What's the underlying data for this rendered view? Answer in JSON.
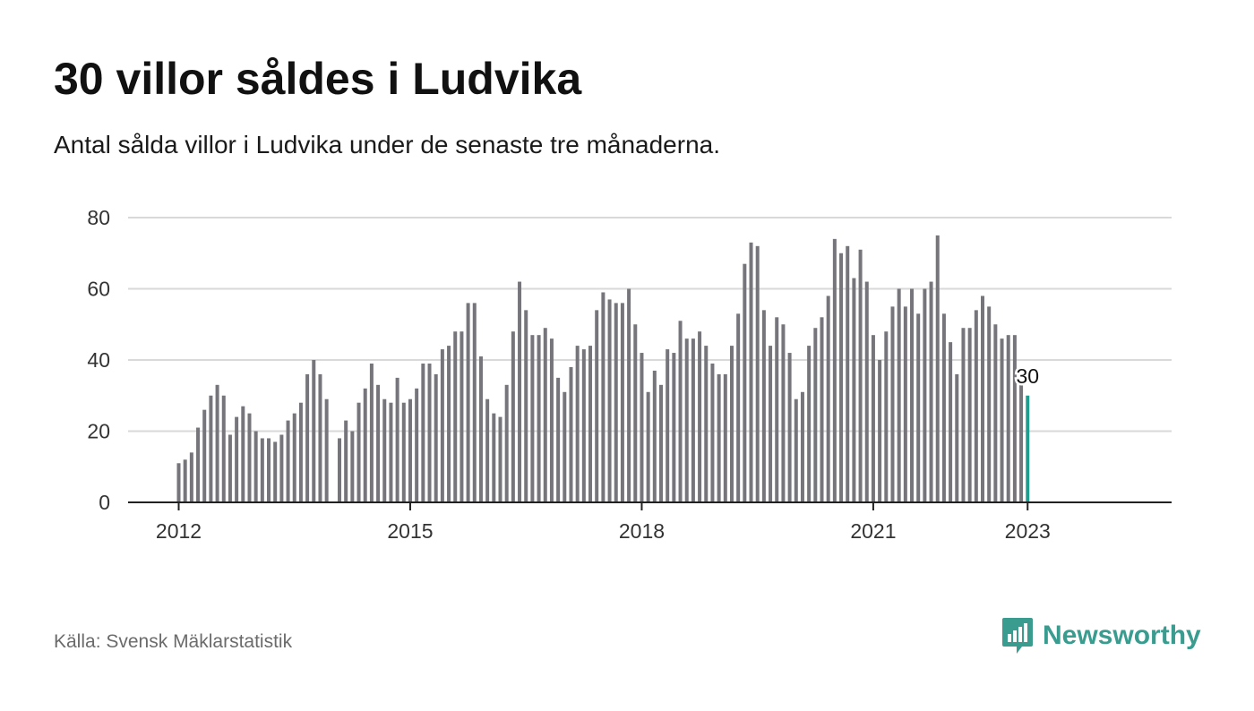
{
  "header": {
    "title": "30 villor såldes i Ludvika",
    "subtitle": "Antal sålda villor i Ludvika under de senaste tre månaderna."
  },
  "footer": {
    "source": "Källa: Svensk Mäklarstatistik",
    "brand": "Newsworthy",
    "brand_icon": "bar-chart-speech-bubble-icon"
  },
  "colors": {
    "bar": "#76757b",
    "highlight": "#1f9e8f",
    "grid": "#d9d9d9",
    "axis": "#222222",
    "brand": "#3a9b8f"
  },
  "chart_data": {
    "type": "bar",
    "x_start": "2012-01",
    "x_interval": "month",
    "x_ticks": [
      "2012",
      "2015",
      "2018",
      "2021",
      "2023"
    ],
    "y_ticks": [
      0,
      20,
      40,
      60,
      80
    ],
    "ylim": [
      0,
      80
    ],
    "grid": true,
    "values": [
      11,
      12,
      14,
      21,
      26,
      30,
      33,
      30,
      19,
      24,
      27,
      25,
      20,
      18,
      18,
      17,
      19,
      23,
      25,
      28,
      36,
      40,
      36,
      29,
      null,
      18,
      23,
      20,
      28,
      32,
      39,
      33,
      29,
      28,
      35,
      28,
      29,
      32,
      39,
      39,
      36,
      43,
      44,
      48,
      48,
      56,
      56,
      41,
      29,
      25,
      24,
      33,
      48,
      62,
      54,
      47,
      47,
      49,
      46,
      35,
      31,
      38,
      44,
      43,
      44,
      54,
      59,
      57,
      56,
      56,
      60,
      50,
      42,
      31,
      37,
      33,
      43,
      42,
      51,
      46,
      46,
      48,
      44,
      39,
      36,
      36,
      44,
      53,
      67,
      73,
      72,
      54,
      44,
      52,
      50,
      42,
      29,
      31,
      44,
      49,
      52,
      58,
      74,
      70,
      72,
      63,
      71,
      62,
      47,
      40,
      48,
      55,
      60,
      55,
      60,
      53,
      60,
      62,
      75,
      53,
      45,
      36,
      49,
      49,
      54,
      58,
      55,
      50,
      46,
      47,
      47,
      34,
      30
    ],
    "highlight_label": "30"
  }
}
